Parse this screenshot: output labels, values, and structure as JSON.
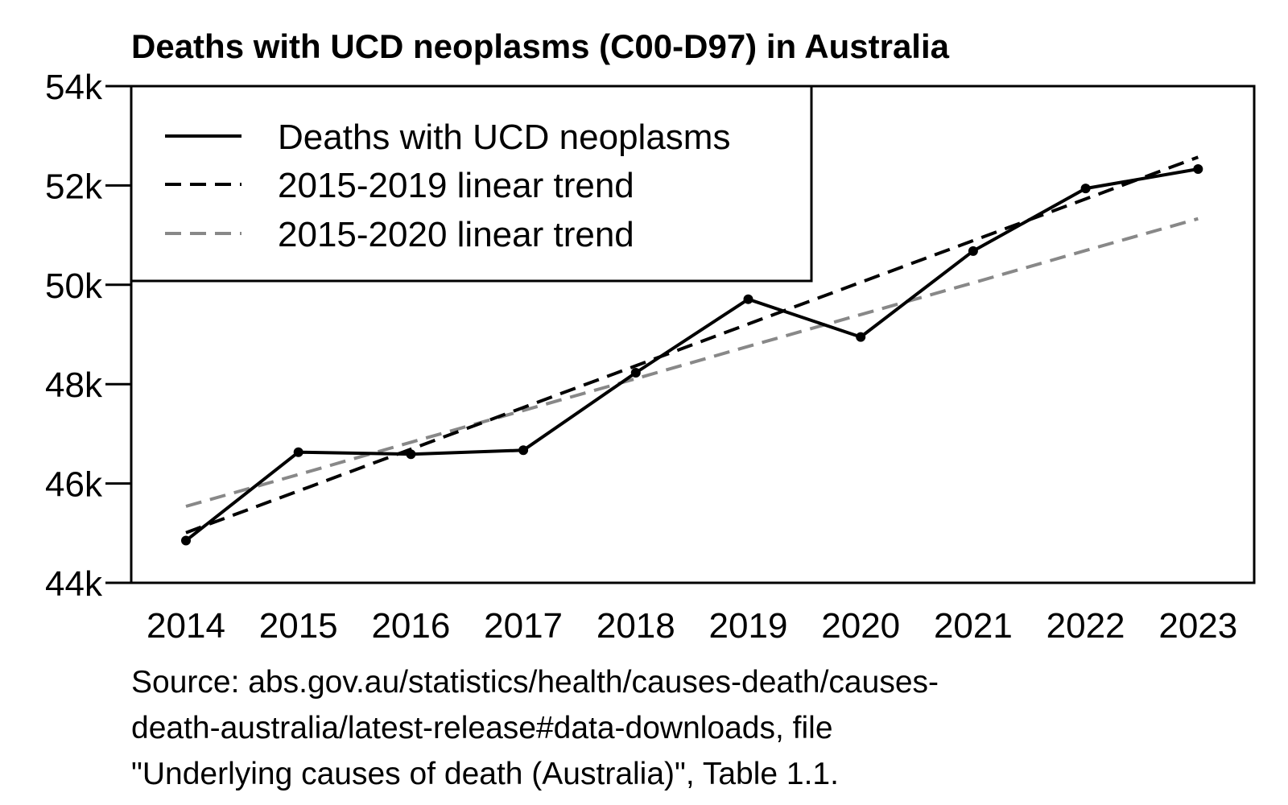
{
  "chart_data": {
    "type": "line",
    "title": "Deaths with UCD neoplasms (C00-D97) in Australia",
    "xlabel": "",
    "ylabel": "",
    "x": [
      2014,
      2015,
      2016,
      2017,
      2018,
      2019,
      2020,
      2021,
      2022,
      2023
    ],
    "x_tick_labels": [
      "2014",
      "2015",
      "2016",
      "2017",
      "2018",
      "2019",
      "2020",
      "2021",
      "2022",
      "2023"
    ],
    "ylim": [
      44000,
      54000
    ],
    "y_ticks": [
      44000,
      46000,
      48000,
      50000,
      52000,
      54000
    ],
    "y_tick_labels": [
      "44k",
      "46k",
      "48k",
      "50k",
      "52k",
      "54k"
    ],
    "grid": false,
    "legend_position": "top-left",
    "series": [
      {
        "name": "Deaths with UCD neoplasms",
        "style": "solid",
        "markers": true,
        "color": "#000000",
        "values": [
          44850,
          46630,
          46590,
          46670,
          48230,
          49710,
          48950,
          50680,
          51940,
          52330
        ]
      },
      {
        "name": "2015-2019 linear trend",
        "style": "dashed",
        "markers": false,
        "color": "#000000",
        "values": [
          45010,
          45850,
          46690,
          47530,
          48370,
          49210,
          50050,
          50890,
          51730,
          52570
        ]
      },
      {
        "name": "2015-2020 linear trend",
        "style": "dashed",
        "markers": false,
        "color": "#888888",
        "values": [
          45540,
          46180,
          46830,
          47470,
          48110,
          48760,
          49400,
          50040,
          50690,
          51330
        ]
      }
    ],
    "source_lines": [
      "Source: abs.gov.au/statistics/health/causes-death/causes-",
      "death-australia/latest-release#data-downloads, file",
      "\"Underlying causes of death (Australia)\", Table 1.1."
    ]
  }
}
